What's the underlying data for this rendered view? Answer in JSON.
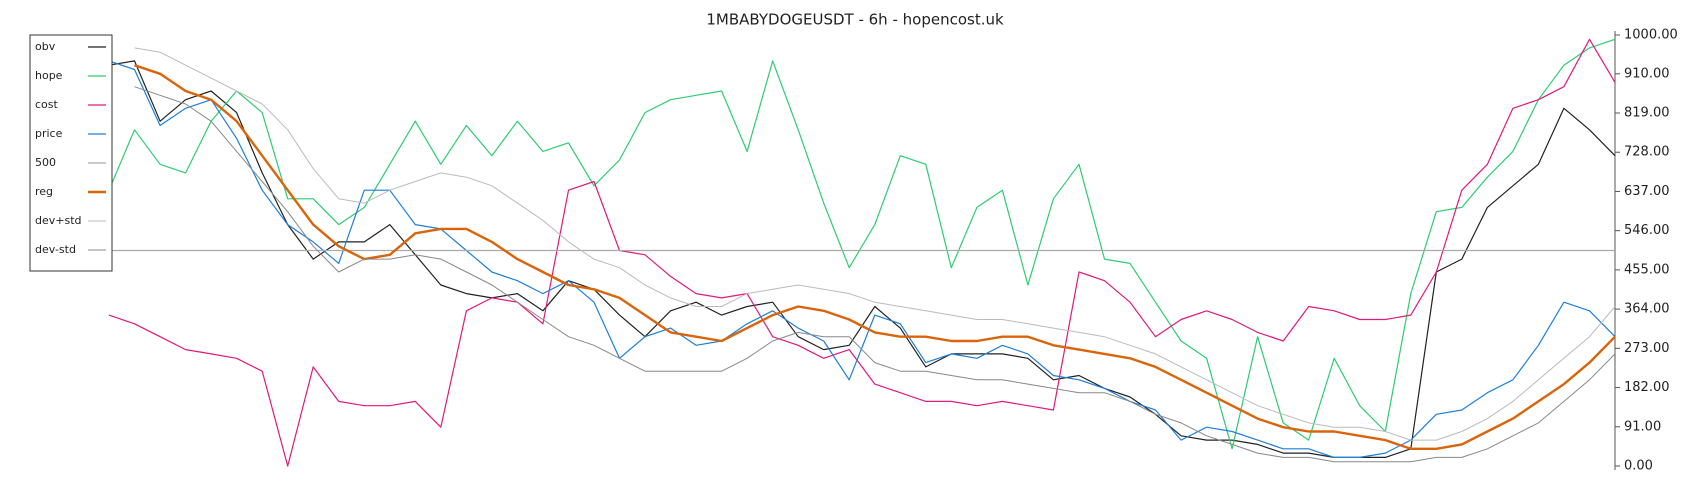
{
  "chart_data": {
    "type": "line",
    "title": "1MBABYDOGEUSDT - 6h - hopencost.uk",
    "ylim": [
      0,
      1000
    ],
    "yticks": [
      {
        "value": 0,
        "label": "0.00"
      },
      {
        "value": 91,
        "label": "91.00"
      },
      {
        "value": 182,
        "label": "182.00"
      },
      {
        "value": 273,
        "label": "273.00"
      },
      {
        "value": 364,
        "label": "364.00"
      },
      {
        "value": 455,
        "label": "455.00"
      },
      {
        "value": 546,
        "label": "546.00"
      },
      {
        "value": 637,
        "label": "637.00"
      },
      {
        "value": 728,
        "label": "728.00"
      },
      {
        "value": 819,
        "label": "819.00"
      },
      {
        "value": 910,
        "label": "910.00"
      },
      {
        "value": 1000,
        "label": "1000.00"
      }
    ],
    "legend": "upper left",
    "series": [
      {
        "name": "obv",
        "color": "#222222",
        "width": 1.2,
        "values": [
          930,
          940,
          800,
          850,
          870,
          820,
          680,
          560,
          480,
          520,
          520,
          560,
          490,
          420,
          400,
          390,
          400,
          360,
          430,
          410,
          350,
          300,
          360,
          380,
          350,
          370,
          380,
          300,
          270,
          280,
          370,
          320,
          230,
          260,
          260,
          260,
          250,
          200,
          210,
          180,
          160,
          120,
          70,
          60,
          60,
          50,
          30,
          30,
          20,
          20,
          20,
          40,
          450,
          480,
          600,
          650,
          700,
          830,
          780,
          720
        ]
      },
      {
        "name": "hope",
        "color": "#2ecc71",
        "width": 1.2,
        "values": [
          640,
          780,
          700,
          680,
          800,
          870,
          820,
          620,
          620,
          560,
          600,
          700,
          800,
          700,
          790,
          720,
          800,
          730,
          750,
          650,
          710,
          820,
          850,
          860,
          870,
          730,
          940,
          780,
          610,
          460,
          560,
          720,
          700,
          460,
          600,
          640,
          420,
          620,
          700,
          480,
          470,
          380,
          290,
          250,
          40,
          300,
          100,
          60,
          250,
          140,
          80,
          400,
          590,
          600,
          670,
          730,
          850,
          930,
          970,
          990
        ]
      },
      {
        "name": "cost",
        "color": "#e0197d",
        "width": 1.2,
        "values": [
          350,
          330,
          300,
          270,
          260,
          250,
          220,
          0,
          230,
          150,
          140,
          140,
          150,
          90,
          360,
          390,
          380,
          330,
          640,
          660,
          500,
          490,
          440,
          400,
          390,
          400,
          300,
          280,
          250,
          270,
          190,
          170,
          150,
          150,
          140,
          150,
          140,
          130,
          450,
          430,
          380,
          300,
          340,
          360,
          340,
          310,
          290,
          370,
          360,
          340,
          340,
          350,
          450,
          640,
          700,
          830,
          850,
          880,
          990,
          890
        ]
      },
      {
        "name": "price",
        "color": "#1e7fd8",
        "width": 1.2,
        "values": [
          940,
          920,
          790,
          830,
          850,
          760,
          640,
          560,
          520,
          470,
          640,
          640,
          560,
          550,
          500,
          450,
          430,
          400,
          430,
          380,
          250,
          300,
          320,
          280,
          290,
          330,
          360,
          320,
          290,
          200,
          350,
          330,
          240,
          260,
          250,
          280,
          260,
          210,
          200,
          180,
          150,
          130,
          60,
          90,
          80,
          60,
          40,
          40,
          20,
          20,
          30,
          60,
          120,
          130,
          170,
          200,
          280,
          380,
          360,
          300
        ]
      },
      {
        "name": "500",
        "color": "#aaaaaa",
        "width": 1.2,
        "values": [
          500,
          500,
          500,
          500,
          500,
          500,
          500,
          500,
          500,
          500,
          500,
          500,
          500,
          500,
          500,
          500,
          500,
          500,
          500,
          500,
          500,
          500,
          500,
          500,
          500,
          500,
          500,
          500,
          500,
          500,
          500,
          500,
          500,
          500,
          500,
          500,
          500,
          500,
          500,
          500,
          500,
          500,
          500,
          500,
          500,
          500,
          500,
          500,
          500,
          500,
          500,
          500,
          500,
          500,
          500,
          500,
          500,
          500,
          500,
          500
        ]
      },
      {
        "name": "reg",
        "color": "#d9640b",
        "width": 2.4,
        "values": [
          null,
          930,
          910,
          870,
          850,
          800,
          720,
          640,
          560,
          510,
          480,
          490,
          540,
          550,
          550,
          520,
          480,
          450,
          420,
          410,
          390,
          350,
          310,
          300,
          290,
          320,
          350,
          370,
          360,
          340,
          310,
          300,
          300,
          290,
          290,
          300,
          300,
          280,
          270,
          260,
          250,
          230,
          200,
          170,
          140,
          110,
          90,
          80,
          80,
          70,
          60,
          40,
          40,
          50,
          80,
          110,
          150,
          190,
          240,
          300
        ]
      },
      {
        "name": "dev+std",
        "color": "#bbbbbb",
        "width": 1,
        "values": [
          null,
          970,
          960,
          930,
          900,
          870,
          840,
          780,
          690,
          620,
          610,
          640,
          660,
          680,
          670,
          650,
          610,
          570,
          520,
          480,
          460,
          420,
          390,
          370,
          370,
          400,
          410,
          420,
          410,
          400,
          380,
          370,
          360,
          350,
          340,
          340,
          330,
          320,
          310,
          300,
          280,
          260,
          230,
          200,
          170,
          140,
          120,
          100,
          90,
          90,
          80,
          60,
          60,
          80,
          110,
          150,
          200,
          250,
          300,
          370
        ]
      },
      {
        "name": "dev-std",
        "color": "#888888",
        "width": 1,
        "values": [
          null,
          880,
          860,
          840,
          800,
          730,
          660,
          590,
          510,
          450,
          480,
          480,
          490,
          480,
          450,
          420,
          380,
          340,
          300,
          280,
          250,
          220,
          220,
          220,
          220,
          250,
          290,
          310,
          300,
          300,
          240,
          220,
          220,
          210,
          200,
          200,
          190,
          180,
          170,
          170,
          150,
          120,
          100,
          70,
          50,
          30,
          20,
          20,
          10,
          10,
          10,
          10,
          20,
          20,
          40,
          70,
          100,
          150,
          200,
          260
        ]
      }
    ]
  }
}
